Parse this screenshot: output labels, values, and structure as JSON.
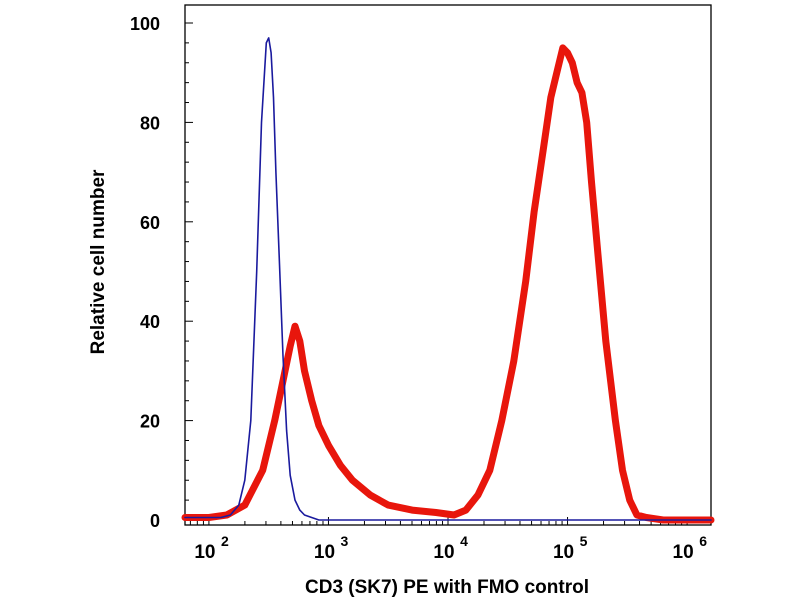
{
  "chart_data": {
    "type": "line",
    "title": "",
    "xlabel": "CD3 (SK7) PE with FMO control",
    "ylabel": "Relative cell number",
    "xscale": "log10",
    "xlim": [
      1.8,
      6.2
    ],
    "ylim": [
      0,
      100
    ],
    "yticks": [
      0,
      20,
      40,
      60,
      80,
      100
    ],
    "xticks": [
      {
        "base": "10",
        "exp": "2",
        "value": 2
      },
      {
        "base": "10",
        "exp": "3",
        "value": 3
      },
      {
        "base": "10",
        "exp": "4",
        "value": 4
      },
      {
        "base": "10",
        "exp": "5",
        "value": 5
      },
      {
        "base": "10",
        "exp": "6",
        "value": 6
      }
    ],
    "grid": false,
    "legend": null,
    "series": [
      {
        "name": "FMO control",
        "color": "#1a1a9e",
        "style": "thin",
        "log_x": [
          1.8,
          2.1,
          2.18,
          2.25,
          2.3,
          2.35,
          2.4,
          2.44,
          2.48,
          2.5,
          2.52,
          2.54,
          2.56,
          2.59,
          2.62,
          2.65,
          2.68,
          2.72,
          2.76,
          2.8,
          2.86,
          2.92,
          3.0,
          6.2
        ],
        "y": [
          0.5,
          0.5,
          1,
          3,
          8,
          20,
          50,
          80,
          96,
          97,
          94,
          85,
          70,
          52,
          33,
          18,
          9,
          4,
          2,
          1,
          0.5,
          0,
          0,
          0
        ]
      },
      {
        "name": "CD3 (SK7) PE",
        "color": "#e8160c",
        "style": "thick",
        "log_x": [
          1.8,
          2.0,
          2.15,
          2.3,
          2.45,
          2.55,
          2.62,
          2.68,
          2.72,
          2.76,
          2.8,
          2.86,
          2.92,
          3.0,
          3.1,
          3.2,
          3.35,
          3.5,
          3.7,
          3.9,
          4.05,
          4.15,
          4.25,
          4.35,
          4.45,
          4.55,
          4.65,
          4.72,
          4.8,
          4.86,
          4.92,
          4.96,
          5.0,
          5.04,
          5.08,
          5.12,
          5.16,
          5.2,
          5.26,
          5.32,
          5.4,
          5.46,
          5.52,
          5.58,
          5.66,
          5.8,
          6.0,
          6.2
        ],
        "y": [
          0.5,
          0.5,
          1,
          3,
          10,
          20,
          28,
          35,
          39,
          36,
          30,
          24,
          19,
          15,
          11,
          8,
          5,
          3,
          2,
          1.5,
          1,
          2,
          5,
          10,
          20,
          32,
          48,
          62,
          75,
          85,
          91,
          95,
          94,
          92,
          88,
          86,
          80,
          68,
          52,
          36,
          20,
          10,
          4,
          1,
          0.5,
          0,
          0,
          0
        ]
      }
    ]
  }
}
